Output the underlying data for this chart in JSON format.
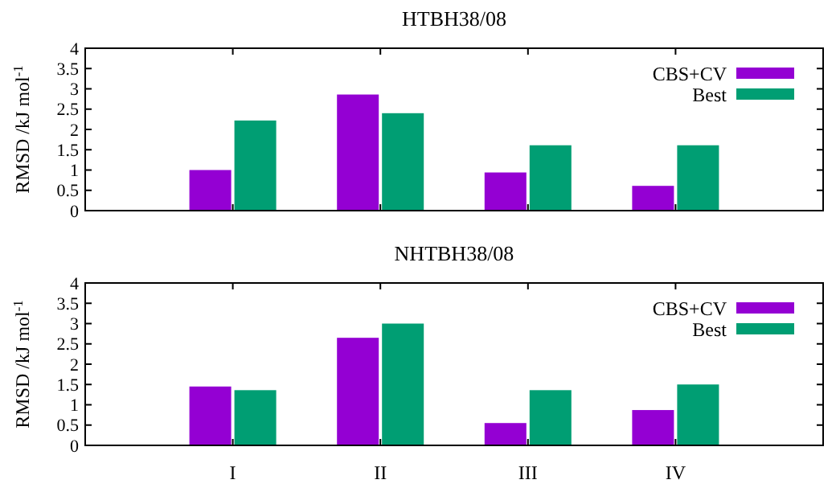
{
  "chart_data": [
    {
      "type": "bar",
      "title": "HTBH38/08",
      "ylabel": "RMSD /kJ mol$^{-1}$",
      "categories": [
        null,
        null,
        null,
        null
      ],
      "series": [
        {
          "name": "CBS+CV",
          "color": "#9400d3",
          "values": [
            1.0,
            2.86,
            0.94,
            0.61
          ]
        },
        {
          "name": "Best",
          "color": "#009e73",
          "values": [
            2.22,
            2.4,
            1.61,
            1.61
          ]
        }
      ],
      "ylim": [
        0,
        4
      ],
      "yticks": [
        0,
        0.5,
        1,
        1.5,
        2,
        2.5,
        3,
        3.5,
        4
      ],
      "legend": "top right",
      "tick_labels": "y"
    },
    {
      "type": "bar",
      "title": "NHTBH38/08",
      "ylabel": "RMSD /kJ mol$^{-1}$",
      "categories": [
        "I",
        "II",
        "III",
        "IV"
      ],
      "series": [
        {
          "name": "CBS+CV",
          "color": "#9400d3",
          "values": [
            1.45,
            2.65,
            0.55,
            0.87
          ]
        },
        {
          "name": "Best",
          "color": "#009e73",
          "values": [
            1.36,
            3.0,
            1.36,
            1.5
          ]
        }
      ],
      "ylim": [
        0,
        4
      ],
      "yticks": [
        0,
        0.5,
        1,
        1.5,
        2,
        2.5,
        3,
        3.5,
        4
      ],
      "legend": "top right"
    }
  ]
}
